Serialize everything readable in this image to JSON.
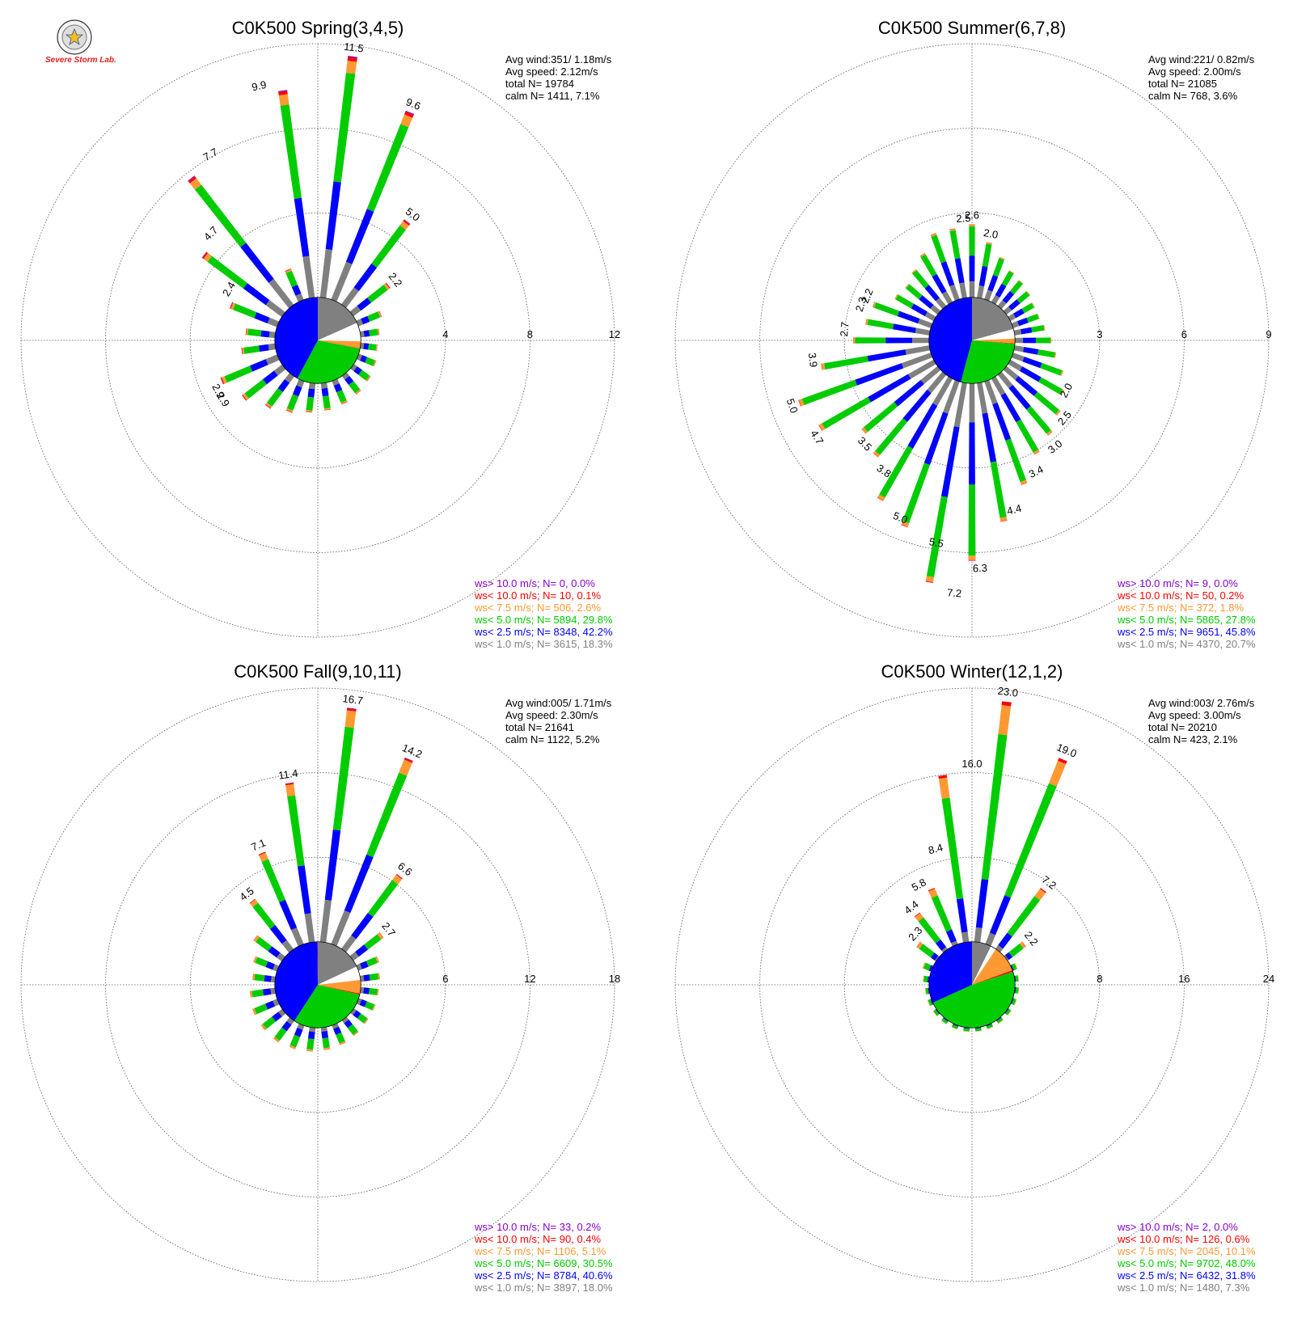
{
  "logo": {
    "text": "Severe Storm Lab.",
    "colors": [
      "#e02020",
      "#1030d0",
      "#1ea81e"
    ]
  },
  "colors": {
    "ws_gt_10": "#8800cc",
    "ws_lt_10": "#ff0000",
    "ws_lt_7_5": "#ff9933",
    "ws_lt_5": "#00cc00",
    "ws_lt_2_5": "#0000ff",
    "ws_lt_1": "#808080",
    "grid": "#555555"
  },
  "chart_data": [
    {
      "type": "polar-bar",
      "title": "C0K500 Spring(3,4,5)",
      "stats": [
        "Avg wind:351/ 1.18m/s",
        "Avg speed: 2.12m/s",
        "total N=      19784",
        "calm N=  1411,   7.1%"
      ],
      "radial_ticks": [
        "4",
        "8",
        "12"
      ],
      "rmax": 12,
      "peak_labels": [
        {
          "dir": 347,
          "value": "9.9"
        },
        {
          "dir": 7,
          "value": "11.5"
        },
        {
          "dir": 22,
          "value": "9.6"
        },
        {
          "dir": 330,
          "value": "7.7"
        },
        {
          "dir": 315,
          "value": "4.7"
        },
        {
          "dir": 37,
          "value": "5.0"
        },
        {
          "dir": 300,
          "value": "2.4"
        },
        {
          "dir": 52,
          "value": "2.2"
        },
        {
          "dir": 238,
          "value": "2.9"
        },
        {
          "dir": 243,
          "value": "2.9"
        }
      ],
      "pie_percent": {
        "calm": 7.1,
        "ws_lt_1": 18.3,
        "ws_lt_2_5": 42.2,
        "ws_lt_5": 29.8,
        "ws_lt_7_5": 2.6,
        "ws_lt_10": 0.1,
        "ws_gt_10": 0.0
      },
      "legend": [
        {
          "text": "ws> 10.0 m/s; N=    0,  0.0%",
          "color": "#8800cc"
        },
        {
          "text": "ws< 10.0 m/s; N=   10,  0.1%",
          "color": "#ff0000"
        },
        {
          "text": "ws<  7.5 m/s; N=  506,  2.6%",
          "color": "#ff9933"
        },
        {
          "text": "ws<  5.0 m/s; N= 5894, 29.8%",
          "color": "#00cc00"
        },
        {
          "text": "ws<  2.5 m/s; N= 8348, 42.2%",
          "color": "#0000ff"
        },
        {
          "text": "ws<  1.0 m/s; N= 3615, 18.3%",
          "color": "#808080"
        }
      ],
      "directions": [
        352,
        7,
        22,
        37,
        52,
        67,
        82,
        97,
        112,
        127,
        142,
        157,
        172,
        187,
        202,
        217,
        232,
        247,
        262,
        277,
        292,
        307,
        322,
        337
      ],
      "totals": [
        9.9,
        11.5,
        9.6,
        5.0,
        2.2,
        1.2,
        0.9,
        0.8,
        0.9,
        1.0,
        1.1,
        1.2,
        1.3,
        1.4,
        1.6,
        1.9,
        2.4,
        2.9,
        1.6,
        1.4,
        2.4,
        4.7,
        7.7,
        1.6
      ],
      "bins_fraction": [
        0.2,
        0.28,
        0.45,
        0.05,
        0.015,
        0.005
      ]
    },
    {
      "type": "polar-bar",
      "title": "C0K500 Summer(6,7,8)",
      "stats": [
        "Avg wind:221/ 0.82m/s",
        "Avg speed: 2.00m/s",
        "total N=      21085",
        "calm N=   768,   3.6%"
      ],
      "radial_ticks": [
        "3",
        "6",
        "9"
      ],
      "rmax": 9,
      "peak_labels": [
        {
          "dir": 356,
          "value": "2.5"
        },
        {
          "dir": 0,
          "value": "2.6"
        },
        {
          "dir": 10,
          "value": "2.0"
        },
        {
          "dir": 293,
          "value": "2.2"
        },
        {
          "dir": 288,
          "value": "2.3"
        },
        {
          "dir": 275,
          "value": "2.7"
        },
        {
          "dir": 263,
          "value": "3.9"
        },
        {
          "dir": 250,
          "value": "5.0"
        },
        {
          "dir": 238,
          "value": "4.7"
        },
        {
          "dir": 226,
          "value": "3.5"
        },
        {
          "dir": 214,
          "value": "3.8"
        },
        {
          "dir": 202,
          "value": "5.0"
        },
        {
          "dir": 190,
          "value": "5.5"
        },
        {
          "dir": 184,
          "value": "7.2"
        },
        {
          "dir": 178,
          "value": "6.3"
        },
        {
          "dir": 166,
          "value": "4.4"
        },
        {
          "dir": 154,
          "value": "3.4"
        },
        {
          "dir": 142,
          "value": "3.0"
        },
        {
          "dir": 130,
          "value": "2.5"
        },
        {
          "dir": 118,
          "value": "2.0"
        }
      ],
      "pie_percent": {
        "calm": 3.6,
        "ws_lt_1": 20.7,
        "ws_lt_2_5": 45.8,
        "ws_lt_5": 27.8,
        "ws_lt_7_5": 1.8,
        "ws_lt_10": 0.2,
        "ws_gt_10": 0.0
      },
      "legend": [
        {
          "text": "ws> 10.0 m/s; N=    9,  0.0%",
          "color": "#8800cc"
        },
        {
          "text": "ws< 10.0 m/s; N=   50,  0.2%",
          "color": "#ff0000"
        },
        {
          "text": "ws<  7.5 m/s; N=  372,  1.8%",
          "color": "#ff9933"
        },
        {
          "text": "ws<  5.0 m/s; N= 5865, 27.8%",
          "color": "#00cc00"
        },
        {
          "text": "ws<  2.5 m/s; N= 9651, 45.8%",
          "color": "#0000ff"
        },
        {
          "text": "ws<  1.0 m/s; N= 4370, 20.7%",
          "color": "#808080"
        }
      ],
      "directions": [
        0,
        10,
        20,
        30,
        40,
        50,
        60,
        70,
        80,
        90,
        100,
        110,
        120,
        130,
        140,
        150,
        160,
        170,
        180,
        190,
        200,
        210,
        220,
        230,
        240,
        250,
        260,
        270,
        280,
        290,
        300,
        310,
        320,
        330,
        340,
        350
      ],
      "totals": [
        2.6,
        2.0,
        1.6,
        1.3,
        1.2,
        1.1,
        1.0,
        1.0,
        1.1,
        1.3,
        1.5,
        1.9,
        2.2,
        2.5,
        2.8,
        3.1,
        3.9,
        5.0,
        6.3,
        7.2,
        5.5,
        5.0,
        3.8,
        3.5,
        4.7,
        5.0,
        3.9,
        2.7,
        2.3,
        2.2,
        1.6,
        1.5,
        1.7,
        2.0,
        2.5,
        2.5
      ],
      "bins_fraction": [
        0.22,
        0.35,
        0.4,
        0.025,
        0.003,
        0.001
      ]
    },
    {
      "type": "polar-bar",
      "title": "C0K500 Fall(9,10,11)",
      "stats": [
        "Avg wind:005/ 1.71m/s",
        "Avg speed: 2.30m/s",
        "total N=      21641",
        "calm N=  1122,   5.2%"
      ],
      "radial_ticks": [
        "6",
        "12",
        "18"
      ],
      "rmax": 18,
      "peak_labels": [
        {
          "dir": 352,
          "value": "11.4"
        },
        {
          "dir": 7,
          "value": "16.7"
        },
        {
          "dir": 22,
          "value": "14.2"
        },
        {
          "dir": 337,
          "value": "7.1"
        },
        {
          "dir": 322,
          "value": "4.5"
        },
        {
          "dir": 37,
          "value": "6.6"
        },
        {
          "dir": 52,
          "value": "2.7"
        }
      ],
      "pie_percent": {
        "calm": 5.2,
        "ws_lt_1": 18.0,
        "ws_lt_2_5": 40.6,
        "ws_lt_5": 30.5,
        "ws_lt_7_5": 5.1,
        "ws_lt_10": 0.4,
        "ws_gt_10": 0.2
      },
      "legend": [
        {
          "text": "ws> 10.0 m/s; N=   33,  0.2%",
          "color": "#8800cc"
        },
        {
          "text": "ws< 10.0 m/s; N=   90,  0.4%",
          "color": "#ff0000"
        },
        {
          "text": "ws<  7.5 m/s; N= 1106,  5.1%",
          "color": "#ff9933"
        },
        {
          "text": "ws<  5.0 m/s; N= 6609, 30.5%",
          "color": "#00cc00"
        },
        {
          "text": "ws<  2.5 m/s; N= 8784, 40.6%",
          "color": "#0000ff"
        },
        {
          "text": "ws<  1.0 m/s; N= 3897, 18.0%",
          "color": "#808080"
        }
      ],
      "directions": [
        352,
        7,
        22,
        37,
        52,
        67,
        82,
        97,
        112,
        127,
        142,
        157,
        172,
        187,
        202,
        217,
        232,
        247,
        262,
        277,
        292,
        307,
        322,
        337
      ],
      "totals": [
        11.4,
        16.7,
        14.2,
        6.6,
        2.7,
        1.6,
        1.4,
        1.3,
        1.3,
        1.3,
        1.4,
        1.5,
        1.6,
        1.7,
        1.8,
        1.9,
        1.9,
        1.9,
        1.8,
        1.6,
        1.8,
        2.5,
        4.5,
        7.1
      ],
      "bins_fraction": [
        0.18,
        0.3,
        0.44,
        0.07,
        0.008,
        0.003
      ]
    },
    {
      "type": "polar-bar",
      "title": "C0K500 Winter(12,1,2)",
      "stats": [
        "Avg wind:003/ 2.76m/s",
        "Avg speed: 3.00m/s",
        "total N=      20210",
        "calm N=   423,   2.1%"
      ],
      "radial_ticks": [
        "8",
        "16",
        "24"
      ],
      "rmax": 24,
      "peak_labels": [
        {
          "dir": 0,
          "value": "16.0"
        },
        {
          "dir": 7,
          "value": "23.0"
        },
        {
          "dir": 22,
          "value": "19.0"
        },
        {
          "dir": 345,
          "value": "8.4"
        },
        {
          "dir": 332,
          "value": "5.8"
        },
        {
          "dir": 322,
          "value": "4.4"
        },
        {
          "dir": 312,
          "value": "2.3"
        },
        {
          "dir": 37,
          "value": "7.2"
        },
        {
          "dir": 52,
          "value": "2.2"
        }
      ],
      "pie_percent": {
        "calm": 2.1,
        "ws_lt_1": 7.3,
        "ws_lt_2_5": 31.8,
        "ws_lt_5": 48.0,
        "ws_lt_7_5": 10.1,
        "ws_lt_10": 0.6,
        "ws_gt_10": 0.0
      },
      "legend": [
        {
          "text": "ws> 10.0 m/s; N=    2,  0.0%",
          "color": "#8800cc"
        },
        {
          "text": "ws< 10.0 m/s; N=  126,  0.6%",
          "color": "#ff0000"
        },
        {
          "text": "ws<  7.5 m/s; N= 2045, 10.1%",
          "color": "#ff9933"
        },
        {
          "text": "ws<  5.0 m/s; N= 9702, 48.0%",
          "color": "#00cc00"
        },
        {
          "text": "ws<  2.5 m/s; N= 6432, 31.8%",
          "color": "#0000ff"
        },
        {
          "text": "ws<  1.0 m/s; N= 1480,  7.3%",
          "color": "#808080"
        }
      ],
      "directions": [
        352,
        7,
        22,
        37,
        52,
        67,
        82,
        97,
        112,
        127,
        142,
        157,
        172,
        187,
        202,
        217,
        232,
        247,
        262,
        277,
        292,
        307,
        322,
        337
      ],
      "totals": [
        16.0,
        23.0,
        19.0,
        7.2,
        2.2,
        0.5,
        0.4,
        0.4,
        0.4,
        0.4,
        0.4,
        0.4,
        0.4,
        0.4,
        0.4,
        0.4,
        0.4,
        0.4,
        0.4,
        0.6,
        0.9,
        2.3,
        4.4,
        5.8
      ],
      "bins_fraction": [
        0.06,
        0.2,
        0.6,
        0.12,
        0.015,
        0.001
      ]
    }
  ]
}
